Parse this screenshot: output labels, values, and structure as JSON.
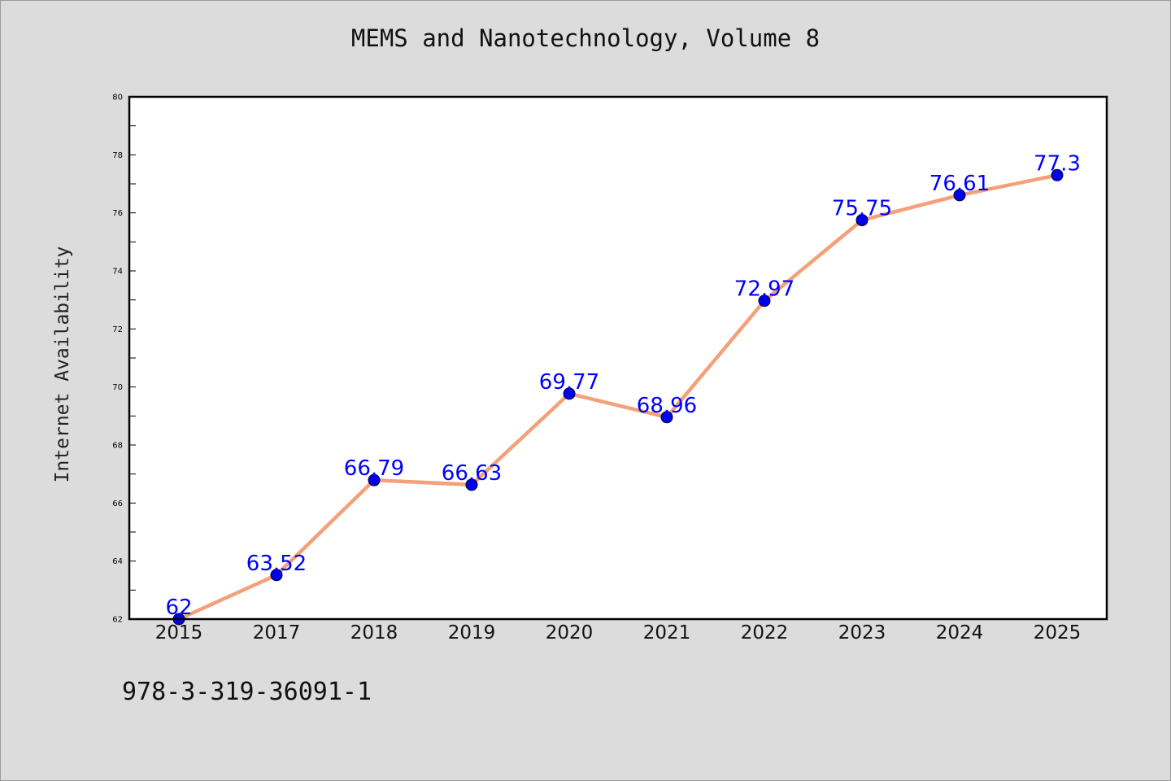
{
  "chart_data": {
    "type": "line",
    "title": "MEMS and Nanotechnology, Volume 8",
    "xlabel": "",
    "ylabel": "Internet Availability",
    "categories": [
      "2015",
      "2017",
      "2018",
      "2019",
      "2020",
      "2021",
      "2022",
      "2023",
      "2024",
      "2025"
    ],
    "series": [
      {
        "values": [
          62,
          63.52,
          66.79,
          66.63,
          69.77,
          68.96,
          72.97,
          75.75,
          76.61,
          77.3
        ],
        "labels": [
          "62",
          "63.52",
          "66.79",
          "66.63",
          "69.77",
          "68.96",
          "72.97",
          "75.75",
          "76.61",
          "77.3"
        ],
        "line_color": "#f4a07a",
        "marker_color": "#0000ee",
        "label_color": "#0000ff"
      }
    ],
    "ylim": [
      62,
      80
    ],
    "yticks": [
      "62",
      "64",
      "66",
      "68",
      "70",
      "72",
      "74",
      "76",
      "78",
      "80"
    ],
    "grid": false,
    "legend": "none"
  },
  "footer": {
    "isbn": "978-3-319-36091-1"
  },
  "colors": {
    "background": "#dcdcdc",
    "plot_background": "#ffffff",
    "axis": "#000000"
  }
}
